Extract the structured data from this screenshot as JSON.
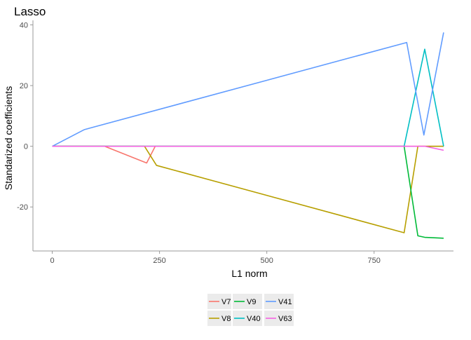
{
  "chart_data": {
    "type": "line",
    "title": "Lasso",
    "xlabel": "L1 norm",
    "ylabel": "Standarized coefficients",
    "xlim": [
      -45,
      935
    ],
    "ylim": [
      -34.5,
      41.5
    ],
    "xticks": [
      0,
      250,
      500,
      750
    ],
    "yticks": [
      -20,
      0,
      20,
      40
    ],
    "grid": false,
    "legend_position": "bottom",
    "series": [
      {
        "name": "V7",
        "color": "#F8766D",
        "x": [
          0,
          122,
          220,
          240,
          820,
          860,
          912
        ],
        "y": [
          0,
          0,
          -5.5,
          0,
          0,
          0,
          0
        ]
      },
      {
        "name": "V8",
        "color": "#B79F00",
        "x": [
          0,
          215,
          243,
          820,
          852,
          912
        ],
        "y": [
          0,
          0,
          -6.3,
          -28.5,
          0,
          0
        ]
      },
      {
        "name": "V9",
        "color": "#00BA38",
        "x": [
          0,
          820,
          852,
          868,
          912
        ],
        "y": [
          0,
          0,
          -29.5,
          -30,
          -30.3
        ]
      },
      {
        "name": "V40",
        "color": "#00BFC4",
        "x": [
          0,
          820,
          868,
          912
        ],
        "y": [
          0,
          0,
          32,
          0
        ]
      },
      {
        "name": "V41",
        "color": "#619CFF",
        "x": [
          0,
          75,
          826,
          866,
          912
        ],
        "y": [
          0,
          5.5,
          34.2,
          3.7,
          37.5
        ]
      },
      {
        "name": "V63",
        "color": "#F564E3",
        "x": [
          0,
          868,
          912
        ],
        "y": [
          0,
          0,
          -1.3
        ]
      }
    ]
  }
}
